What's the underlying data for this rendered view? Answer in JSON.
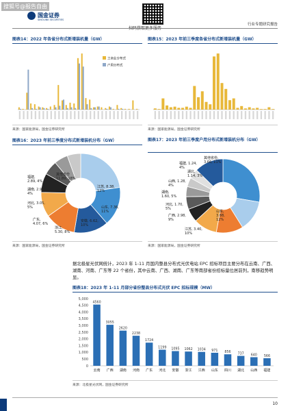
{
  "header": {
    "watermark": "搜狐号@报告自由",
    "logo_cn": "国金证券",
    "logo_en": "SINOLINK SECURITIES",
    "qr_caption": "扫码获取更多服务",
    "report_type": "行业专题研究报告"
  },
  "fig14": {
    "title": "图表14：2022 年各省分布式新增装机量（GW）",
    "source": "来源：国家能源局，国金证券研究所",
    "legend": [
      "工商业分布式",
      "户用分布式"
    ],
    "chart_data": {
      "type": "bar",
      "series": [
        {
          "name": "工商业分布式",
          "color": "#e8b83a",
          "values": [
            0.3,
            0.1,
            2.2,
            0.8,
            0.7,
            0.4,
            0.3,
            0.2,
            0.4,
            0.6,
            3.2,
            1.2,
            0.6,
            0.9,
            0.8,
            6.7,
            7.3,
            1.5,
            1.3,
            0.3,
            0.4,
            0.3,
            0.2,
            0.4,
            0.1,
            0.6,
            0.2,
            0.1,
            0.1,
            1.2,
            0.1
          ]
        },
        {
          "name": "户用分布式",
          "color": "#8fa8c8",
          "values": [
            0.1,
            0.0,
            5.2,
            0.2,
            0.1,
            0.3,
            0.2,
            0.1,
            0.0,
            0.3,
            0.5,
            1.3,
            0.2,
            0.3,
            0.2,
            6.0,
            5.6,
            0.7,
            0.2,
            0.3,
            0.4,
            0.0,
            0.1,
            0.3,
            0.0,
            0.1,
            0.1,
            0.0,
            0.0,
            0.0,
            0.0
          ]
        }
      ]
    }
  },
  "fig15": {
    "title": "图表15：2023 年前三季度各省分布式新增装机量（GW）",
    "source": "来源：国家能源局，国金证券研究所",
    "chart_data": {
      "type": "bar",
      "series": [
        {
          "name": "",
          "color": "#e8b83a",
          "values": [
            0.2,
            0.1,
            1.9,
            0.7,
            0.4,
            0.5,
            0.3,
            0.3,
            0.5,
            0.3,
            4.0,
            2.1,
            3.1,
            1.3,
            0.9,
            9.0,
            9.5,
            4.5,
            3.5,
            1.6,
            1.9,
            0.3,
            0.6,
            0.2,
            0.4,
            0.2,
            0.3,
            0.1,
            0.1,
            0.4,
            0.1
          ]
        }
      ]
    }
  },
  "fig16": {
    "title": "图表16：2023 年前三季度分布式新增装机分布（GW）",
    "source": "来源：国家能源局，国金证券研究所",
    "chart_data": {
      "type": "pie",
      "slices": [
        {
          "label": "其他省份",
          "value": 11.89,
          "pct": "18%",
          "color": "#a9cdec"
        },
        {
          "label": "江苏",
          "value": 8.38,
          "pct": "12%",
          "color": "#3f8fd0"
        },
        {
          "label": "山东",
          "value": 7.36,
          "pct": "11%",
          "color": "#245a9c"
        },
        {
          "label": "安徽",
          "value": 6.62,
          "pct": "10%",
          "color": "#ed7d31"
        },
        {
          "label": "浙江",
          "value": 5.3,
          "pct": "8%",
          "color": "#f2a94a"
        },
        {
          "label": "广东",
          "value": 4.07,
          "pct": "6%",
          "color": "#222222"
        },
        {
          "label": "河北",
          "value": 3.05,
          "pct": "5%",
          "color": "#5a5a5a"
        },
        {
          "label": "湖南",
          "value": 2.94,
          "pct": "4%",
          "color": "#9a9a9a"
        },
        {
          "label": "福建",
          "value": 2.89,
          "pct": "4%",
          "color": "#c9c9c9"
        }
      ],
      "labels": [
        "其他省份\n11.89, 18%",
        "江苏, 8.38,\n12%",
        "山东, 7.36,\n11%",
        "安徽, 6.62,\n10%",
        "浙江,\n5.30, 8%",
        "广东,\n4.07, 6%",
        "河北, 3.05,\n5%",
        "湖南, 2.94,\n4%",
        "福建,\n2.89, 4%"
      ]
    }
  },
  "fig17": {
    "title": "图表17：2023 年前三季度户用分布式新增装机分布（GW）",
    "source": "来源：国家能源局，国金证券研究所",
    "chart_data": {
      "type": "pie",
      "slices": [
        {
          "label": "河南",
          "value": 8.0,
          "pct": "25%",
          "color": "#3f8fd0"
        },
        {
          "label": "山东",
          "value": 3.88,
          "pct": "12%",
          "color": "#a9cdec"
        },
        {
          "label": "江苏",
          "value": 3.4,
          "pct": "10%",
          "color": "#ed7d31"
        },
        {
          "label": "广西",
          "value": 2.98,
          "pct": "9%",
          "color": "#f2a94a"
        },
        {
          "label": "河北",
          "value": 1.7,
          "pct": "5%",
          "color": "#222222"
        },
        {
          "label": "湖南",
          "value": 1.6,
          "pct": "5%",
          "color": "#5a5a5a"
        },
        {
          "label": "山西",
          "value": 1.28,
          "pct": "4%",
          "color": "#9a9a9a"
        },
        {
          "label": "湖北",
          "value": 1.14,
          "pct": "3%",
          "color": "#c9c9c9"
        },
        {
          "label": "福建",
          "value": 1.24,
          "pct": "4%",
          "color": "#e0e0e0"
        },
        {
          "label": "其他省份",
          "value": 3.66,
          "pct": "11%",
          "color": "#245a9c"
        }
      ],
      "labels": [
        "福建, 1.24,\n4%",
        "其他省份,\n3.66, 11%",
        "湖北,\n1.14, 3%",
        "山西, 1.28,\n4%",
        "湖南,\n1.60, 5%",
        "河北, 1.70,\n5%",
        "广西, 2.98,\n9%",
        "江苏, 3.40,\n10%",
        "山东,\n3.88,\n12%"
      ]
    }
  },
  "paragraph": "据北极星光伏网统计，2023 年 1-11 月国内整县分布式光伏电站 EPC 招标项目主要分布在云南、广西、湖南、河南、广东等 22 个省份，其中云南、广西、湖南、广东等南部省份招标量位居前列，南移趋势明显。",
  "fig18": {
    "title": "图表18：2023 年 1-11 月部分省份整县分布式光伏 EPC 招标规模（MW）",
    "source": "来源：北极星光伏网，国金证券研究所",
    "chart_data": {
      "type": "bar",
      "categories": [
        "云南",
        "广西",
        "湖南",
        "河南",
        "广东",
        "河北",
        "安徽",
        "浙江",
        "江西",
        "山东",
        "四川",
        "湖北",
        "山西",
        "福建"
      ],
      "values": [
        4560,
        3055,
        2620,
        2238,
        1724,
        1199,
        1095,
        1062,
        1034,
        971,
        856,
        737,
        640,
        566
      ],
      "ylim": [
        0,
        5000
      ],
      "yticks": [
        "0",
        "500",
        "1,000",
        "1,500",
        "2,000",
        "2,500",
        "3,000",
        "3,500",
        "4,000",
        "4,500",
        "5,000"
      ],
      "color": "#2b6fb5"
    }
  },
  "page_number": "10"
}
